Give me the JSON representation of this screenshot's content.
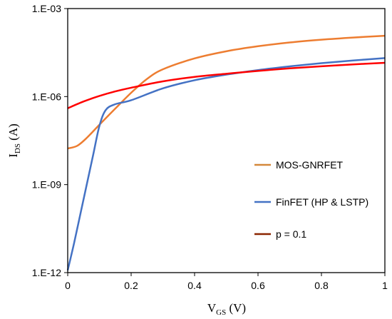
{
  "chart_data": {
    "type": "line",
    "xlabel": {
      "main": "V",
      "sub": "GS",
      "unit": " (V)"
    },
    "ylabel": {
      "main": "I",
      "sub": "DS",
      "unit": " (A)"
    },
    "xlim": [
      0,
      1
    ],
    "ylim_log10": [
      -12,
      -3
    ],
    "yscale": "log",
    "xticks": [
      {
        "v": 0,
        "label": "0"
      },
      {
        "v": 0.2,
        "label": "0.2"
      },
      {
        "v": 0.4,
        "label": "0.4"
      },
      {
        "v": 0.6,
        "label": "0.6"
      },
      {
        "v": 0.8,
        "label": "0.8"
      },
      {
        "v": 1,
        "label": "1"
      }
    ],
    "yticks": [
      {
        "v": -12,
        "label": "1.E-12"
      },
      {
        "v": -9,
        "label": "1.E-09"
      },
      {
        "v": -6,
        "label": "1.E-06"
      },
      {
        "v": -3,
        "label": "1.E-03"
      }
    ],
    "grid": false,
    "legend_position": "right",
    "series": [
      {
        "name": "MOS-GNRFET",
        "color": "#ED7D31",
        "legend_color": "#D4883A",
        "x": [
          0,
          0.03,
          0.06,
          0.1,
          0.15,
          0.2,
          0.25,
          0.3,
          0.4,
          0.5,
          0.6,
          0.7,
          0.8,
          0.9,
          1.0
        ],
        "y": [
          1.7e-08,
          2.1e-08,
          3.9e-08,
          1.1e-07,
          3.9e-07,
          1.35e-06,
          4e-06,
          8.5e-06,
          2e-05,
          3.5e-05,
          5.2e-05,
          7e-05,
          8.7e-05,
          0.000103,
          0.000118
        ]
      },
      {
        "name": "FinFET (HP & LSTP)",
        "color": "#4472C4",
        "legend_color": "#4472C4",
        "x": [
          0,
          0.02,
          0.04,
          0.06,
          0.08,
          0.1,
          0.12,
          0.15,
          0.2,
          0.3,
          0.4,
          0.5,
          0.6,
          0.7,
          0.8,
          0.9,
          1.0
        ],
        "y": [
          1.2e-12,
          1e-11,
          1e-10,
          1e-09,
          1e-08,
          1e-07,
          3.5e-07,
          5.5e-07,
          7.5e-07,
          1.9e-06,
          3.6e-06,
          5.6e-06,
          8e-06,
          1.07e-05,
          1.38e-05,
          1.7e-05,
          2.05e-05
        ]
      },
      {
        "name": "p = 0.1",
        "color": "#FF0000",
        "legend_color": "#8B2500",
        "x": [
          0,
          0.05,
          0.1,
          0.15,
          0.2,
          0.3,
          0.4,
          0.5,
          0.6,
          0.7,
          0.8,
          0.9,
          1.0
        ],
        "y": [
          4e-07,
          6.8e-07,
          1.05e-06,
          1.5e-06,
          2e-06,
          3.3e-06,
          4.7e-06,
          6e-06,
          7.5e-06,
          9.2e-06,
          1.08e-05,
          1.25e-05,
          1.42e-05
        ]
      }
    ]
  }
}
